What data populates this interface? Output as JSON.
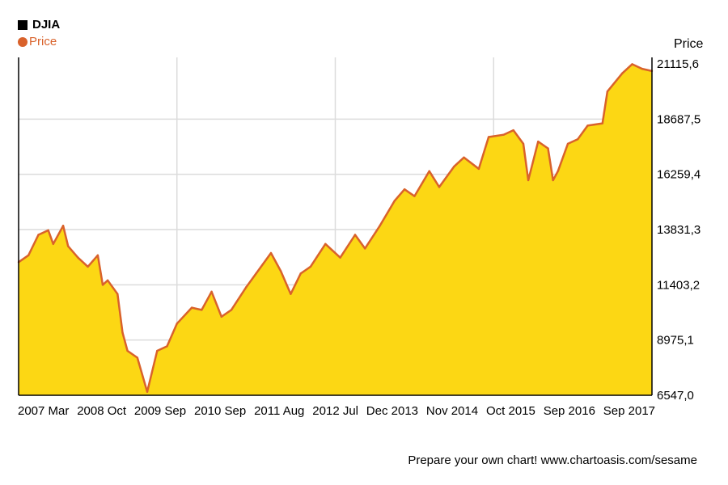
{
  "legend": {
    "title": "DJIA",
    "series_label": "Price"
  },
  "footer": {
    "text": "Prepare your own chart! www.chartoasis.com/sesame"
  },
  "colors": {
    "fill": "#fcd714",
    "line": "#d9622b",
    "grid": "#dcdcdc",
    "axis": "#000000",
    "legend_square": "#000000"
  },
  "chart_data": {
    "type": "area",
    "title": "DJIA",
    "ylabel": "Price",
    "ylim": [
      6547.0,
      21115.6
    ],
    "y_ticks": [
      "21115,6",
      "18687,5",
      "16259,4",
      "13831,3",
      "11403,2",
      "8975,1",
      "6547,0"
    ],
    "x_tick_labels": [
      "2007 Mar",
      "2008 Oct",
      "2009 Sep",
      "2010 Sep",
      "2011 Aug",
      "2012 Jul",
      "Dec 2013",
      "Nov 2014",
      "Oct 2015",
      "Sep 2016",
      "Sep 2017"
    ],
    "grid": true,
    "legend_position": "top-left",
    "series": [
      {
        "name": "Price",
        "x": [
          "2007-01",
          "2007-03",
          "2007-05",
          "2007-07",
          "2007-08",
          "2007-10",
          "2007-11",
          "2008-01",
          "2008-03",
          "2008-05",
          "2008-06",
          "2008-07",
          "2008-09",
          "2008-10",
          "2008-11",
          "2009-01",
          "2009-03",
          "2009-05",
          "2009-07",
          "2009-09",
          "2009-12",
          "2010-02",
          "2010-04",
          "2010-06",
          "2010-08",
          "2010-11",
          "2011-01",
          "2011-04",
          "2011-06",
          "2011-08",
          "2011-10",
          "2011-12",
          "2012-03",
          "2012-06",
          "2012-09",
          "2012-11",
          "2013-02",
          "2013-05",
          "2013-07",
          "2013-09",
          "2013-12",
          "2014-02",
          "2014-05",
          "2014-07",
          "2014-10",
          "2014-12",
          "2015-03",
          "2015-05",
          "2015-07",
          "2015-08",
          "2015-10",
          "2015-12",
          "2016-01",
          "2016-02",
          "2016-04",
          "2016-06",
          "2016-08",
          "2016-11",
          "2016-12",
          "2017-03",
          "2017-05",
          "2017-07",
          "2017-09"
        ],
        "y": [
          12400,
          12700,
          13600,
          13800,
          13200,
          14000,
          13100,
          12600,
          12200,
          12700,
          11400,
          11600,
          11000,
          9300,
          8500,
          8200,
          6700,
          8500,
          8700,
          9700,
          10400,
          10300,
          11100,
          10000,
          10300,
          11300,
          11900,
          12800,
          12000,
          11000,
          11900,
          12200,
          13200,
          12600,
          13600,
          13000,
          14000,
          15100,
          15600,
          15300,
          16400,
          15700,
          16600,
          17000,
          16500,
          17900,
          18000,
          18200,
          17600,
          16000,
          17700,
          17400,
          16000,
          16400,
          17600,
          17800,
          18400,
          18500,
          19900,
          20700,
          21100,
          20900,
          20800
        ]
      }
    ]
  }
}
